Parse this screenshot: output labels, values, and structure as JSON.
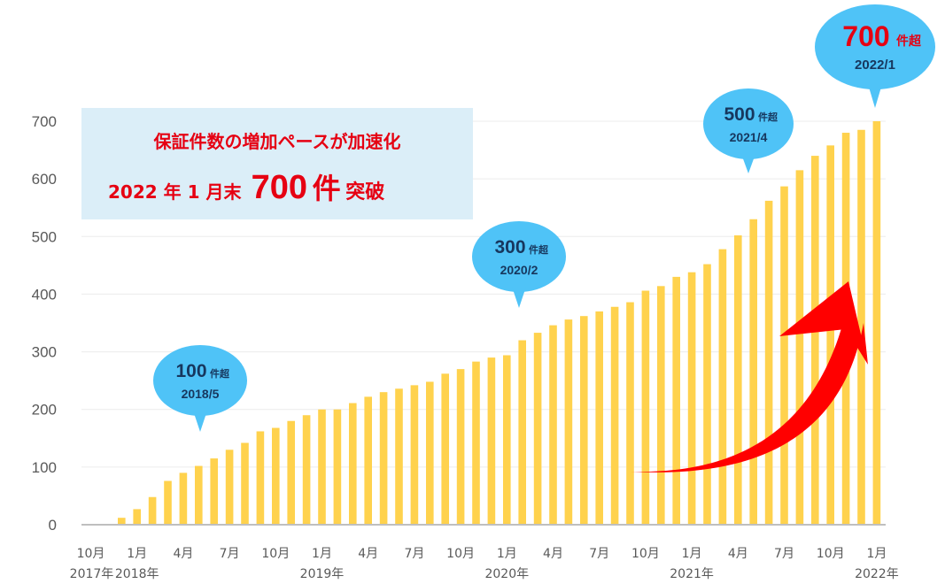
{
  "chart_data": {
    "type": "bar",
    "ylim": [
      0,
      700
    ],
    "yticks": [
      0,
      100,
      200,
      300,
      400,
      500,
      600,
      700
    ],
    "grid": true,
    "bar_color": "#ffd24d",
    "arrow_color": "#ff0000",
    "bubble_color": "#4fc3f7",
    "highlight_color": "#e60012",
    "x": [
      "2017/10",
      "2017/11",
      "2017/12",
      "2018/1",
      "2018/2",
      "2018/3",
      "2018/4",
      "2018/5",
      "2018/6",
      "2018/7",
      "2018/8",
      "2018/9",
      "2018/10",
      "2018/11",
      "2018/12",
      "2019/1",
      "2019/2",
      "2019/3",
      "2019/4",
      "2019/5",
      "2019/6",
      "2019/7",
      "2019/8",
      "2019/9",
      "2019/10",
      "2019/11",
      "2019/12",
      "2020/1",
      "2020/2",
      "2020/3",
      "2020/4",
      "2020/5",
      "2020/6",
      "2020/7",
      "2020/8",
      "2020/9",
      "2020/10",
      "2020/11",
      "2020/12",
      "2021/1",
      "2021/2",
      "2021/3",
      "2021/4",
      "2021/5",
      "2021/6",
      "2021/7",
      "2021/8",
      "2021/9",
      "2021/10",
      "2021/11",
      "2021/12",
      "2022/1"
    ],
    "values": [
      0,
      0,
      12,
      27,
      48,
      76,
      90,
      102,
      115,
      130,
      142,
      162,
      168,
      180,
      190,
      200,
      200,
      211,
      222,
      230,
      236,
      242,
      248,
      262,
      270,
      283,
      290,
      294,
      320,
      333,
      346,
      356,
      362,
      370,
      378,
      386,
      406,
      414,
      430,
      438,
      452,
      478,
      502,
      530,
      562,
      587,
      615,
      640,
      658,
      680,
      685,
      700
    ],
    "tick_labels": [
      {
        "index": 0,
        "month": "10月",
        "year": "2017年"
      },
      {
        "index": 3,
        "month": "1月",
        "year": "2018年"
      },
      {
        "index": 6,
        "month": "4月",
        "year": ""
      },
      {
        "index": 9,
        "month": "7月",
        "year": ""
      },
      {
        "index": 12,
        "month": "10月",
        "year": ""
      },
      {
        "index": 15,
        "month": "1月",
        "year": "2019年"
      },
      {
        "index": 18,
        "month": "4月",
        "year": ""
      },
      {
        "index": 21,
        "month": "7月",
        "year": ""
      },
      {
        "index": 24,
        "month": "10月",
        "year": ""
      },
      {
        "index": 27,
        "month": "1月",
        "year": "2020年"
      },
      {
        "index": 30,
        "month": "4月",
        "year": ""
      },
      {
        "index": 33,
        "month": "7月",
        "year": ""
      },
      {
        "index": 36,
        "month": "10月",
        "year": ""
      },
      {
        "index": 39,
        "month": "1月",
        "year": "2021年"
      },
      {
        "index": 42,
        "month": "4月",
        "year": ""
      },
      {
        "index": 45,
        "month": "7月",
        "year": ""
      },
      {
        "index": 48,
        "month": "10月",
        "year": ""
      },
      {
        "index": 51,
        "month": "1月",
        "year": "2022年"
      }
    ],
    "callouts": [
      {
        "index": 7,
        "count": "100",
        "unit": "件超",
        "date": "2018/5",
        "highlight": false
      },
      {
        "index": 28,
        "count": "300",
        "unit": "件超",
        "date": "2020/2",
        "highlight": false
      },
      {
        "index": 42,
        "count": "500",
        "unit": "件超",
        "date": "2021/4",
        "highlight": false
      },
      {
        "index": 51,
        "count": "700",
        "unit": "件超",
        "date": "2022/1",
        "highlight": true
      }
    ]
  },
  "annotation": {
    "line1": "保証件数の増加ペースが加速化",
    "line2_a": "2022 年 1 月末",
    "line2_b": "700",
    "line2_c": "件",
    "line2_d": "突破"
  }
}
